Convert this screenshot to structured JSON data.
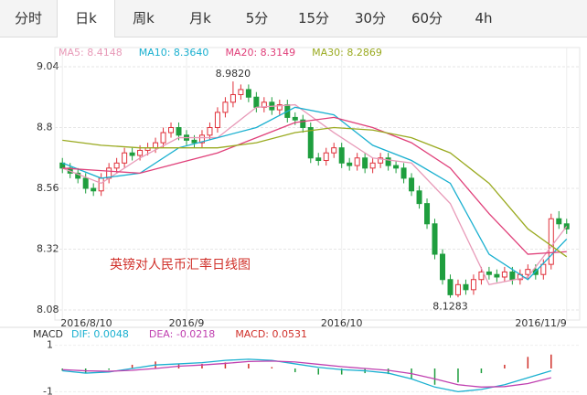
{
  "tabs": [
    "分时",
    "日k",
    "周k",
    "月k",
    "5分",
    "15分",
    "30分",
    "60分",
    "4h"
  ],
  "active_tab": 1,
  "chart_data": [
    {
      "type": "candlestick",
      "title": "英镑对人民币汇率日线图",
      "title_color": "#d0302a",
      "up_color": "#e0303a",
      "down_color": "#1f9e3e",
      "xlim": [
        -0.5,
        65.5
      ],
      "ylim": [
        8.08,
        9.04
      ],
      "yticks": [
        9.04,
        8.8,
        8.56,
        8.32,
        8.08
      ],
      "grid": true,
      "xticks": [
        {
          "value": 0,
          "label": "2016/8/10"
        },
        {
          "value": 16,
          "label": "2016/9"
        },
        {
          "value": 36,
          "label": "2016/10"
        },
        {
          "value": 65,
          "label": "2016/11/9"
        }
      ],
      "open": [
        8.66,
        8.64,
        8.62,
        8.6,
        8.56,
        8.55,
        8.6,
        8.64,
        8.66,
        8.7,
        8.69,
        8.71,
        8.72,
        8.74,
        8.78,
        8.8,
        8.77,
        8.75,
        8.74,
        8.77,
        8.8,
        8.86,
        8.9,
        8.93,
        8.95,
        8.92,
        8.88,
        8.9,
        8.87,
        8.89,
        8.84,
        8.83,
        8.8,
        8.68,
        8.67,
        8.7,
        8.72,
        8.66,
        8.65,
        8.68,
        8.64,
        8.66,
        8.68,
        8.65,
        8.64,
        8.6,
        8.55,
        8.5,
        8.42,
        8.3,
        8.2,
        8.14,
        8.18,
        8.16,
        8.2,
        8.23,
        8.22,
        8.21,
        8.23,
        8.2,
        8.22,
        8.24,
        8.22,
        8.26,
        8.44,
        8.42
      ],
      "high": [
        8.68,
        8.66,
        8.64,
        8.62,
        8.58,
        8.62,
        8.66,
        8.68,
        8.72,
        8.72,
        8.73,
        8.74,
        8.76,
        8.8,
        8.82,
        8.82,
        8.79,
        8.77,
        8.79,
        8.82,
        8.88,
        8.92,
        8.982,
        8.97,
        8.97,
        8.94,
        8.92,
        8.92,
        8.91,
        8.91,
        8.86,
        8.85,
        8.82,
        8.7,
        8.72,
        8.74,
        8.74,
        8.68,
        8.7,
        8.7,
        8.68,
        8.7,
        8.7,
        8.67,
        8.66,
        8.62,
        8.57,
        8.52,
        8.44,
        8.32,
        8.22,
        8.2,
        8.2,
        8.22,
        8.25,
        8.25,
        8.24,
        8.25,
        8.25,
        8.24,
        8.26,
        8.26,
        8.28,
        8.46,
        8.47,
        8.44
      ],
      "low": [
        8.62,
        8.6,
        8.58,
        8.54,
        8.53,
        8.53,
        8.58,
        8.62,
        8.64,
        8.67,
        8.67,
        8.69,
        8.7,
        8.72,
        8.76,
        8.75,
        8.73,
        8.72,
        8.72,
        8.75,
        8.78,
        8.84,
        8.88,
        8.91,
        8.9,
        8.86,
        8.86,
        8.85,
        8.85,
        8.82,
        8.81,
        8.78,
        8.66,
        8.65,
        8.65,
        8.68,
        8.64,
        8.63,
        8.63,
        8.62,
        8.62,
        8.64,
        8.63,
        8.62,
        8.58,
        8.53,
        8.48,
        8.4,
        8.28,
        8.18,
        8.1283,
        8.13,
        8.14,
        8.14,
        8.18,
        8.2,
        8.19,
        8.19,
        8.18,
        8.18,
        8.2,
        8.2,
        8.2,
        8.24,
        8.4,
        8.38
      ],
      "close": [
        8.64,
        8.62,
        8.6,
        8.56,
        8.55,
        8.6,
        8.64,
        8.66,
        8.7,
        8.69,
        8.71,
        8.72,
        8.74,
        8.78,
        8.8,
        8.77,
        8.75,
        8.74,
        8.77,
        8.8,
        8.86,
        8.9,
        8.93,
        8.95,
        8.92,
        8.88,
        8.9,
        8.87,
        8.89,
        8.84,
        8.83,
        8.8,
        8.68,
        8.67,
        8.7,
        8.72,
        8.66,
        8.65,
        8.68,
        8.64,
        8.66,
        8.68,
        8.65,
        8.64,
        8.6,
        8.55,
        8.5,
        8.42,
        8.3,
        8.2,
        8.14,
        8.18,
        8.16,
        8.2,
        8.23,
        8.22,
        8.21,
        8.23,
        8.2,
        8.22,
        8.24,
        8.22,
        8.26,
        8.44,
        8.42,
        8.4
      ],
      "series": [
        {
          "label": "MA5: 8.4148",
          "color": "#e89ab8",
          "x": [
            0,
            5,
            10,
            15,
            20,
            25,
            30,
            35,
            40,
            45,
            50,
            55,
            60,
            65
          ],
          "values": [
            8.64,
            8.58,
            8.68,
            8.76,
            8.76,
            8.88,
            8.89,
            8.78,
            8.68,
            8.66,
            8.5,
            8.18,
            8.21,
            8.41
          ]
        },
        {
          "label": "MA10: 8.3640",
          "color": "#1ab0d0",
          "x": [
            0,
            5,
            10,
            15,
            20,
            25,
            30,
            35,
            40,
            45,
            50,
            55,
            60,
            65
          ],
          "values": [
            8.66,
            8.6,
            8.62,
            8.72,
            8.76,
            8.8,
            8.88,
            8.85,
            8.73,
            8.67,
            8.58,
            8.3,
            8.2,
            8.36
          ]
        },
        {
          "label": "MA20: 8.3149",
          "color": "#e0407a",
          "x": [
            0,
            5,
            10,
            15,
            20,
            25,
            30,
            35,
            40,
            45,
            50,
            55,
            60,
            65
          ],
          "values": [
            8.64,
            8.63,
            8.62,
            8.66,
            8.7,
            8.76,
            8.82,
            8.84,
            8.8,
            8.74,
            8.64,
            8.46,
            8.3,
            8.31
          ]
        },
        {
          "label": "MA30: 8.2869",
          "color": "#9aaa20",
          "x": [
            0,
            5,
            10,
            15,
            20,
            25,
            30,
            35,
            40,
            45,
            50,
            55,
            60,
            65
          ],
          "values": [
            8.75,
            8.73,
            8.72,
            8.72,
            8.72,
            8.74,
            8.78,
            8.8,
            8.79,
            8.76,
            8.7,
            8.58,
            8.4,
            8.29
          ]
        }
      ],
      "annotations": [
        {
          "text": "8.9820",
          "x": 22,
          "y": 8.982,
          "side": "above"
        },
        {
          "text": "8.1283",
          "x": 50,
          "y": 8.1283,
          "side": "below"
        }
      ]
    },
    {
      "type": "macd",
      "title": "MACD",
      "xlim": [
        -0.5,
        65.5
      ],
      "ylim": [
        -1.3,
        1.3
      ],
      "yticks": [
        1,
        -1
      ],
      "x": [
        0,
        3,
        6,
        9,
        12,
        15,
        18,
        21,
        24,
        27,
        30,
        33,
        36,
        39,
        42,
        45,
        48,
        51,
        54,
        57,
        60,
        63
      ],
      "series": [
        {
          "label": "DIF: 0.0048",
          "color": "#1ab0d0",
          "values": [
            -0.1,
            -0.2,
            -0.15,
            0.0,
            0.15,
            0.2,
            0.25,
            0.35,
            0.4,
            0.35,
            0.2,
            0.05,
            -0.05,
            -0.1,
            -0.2,
            -0.45,
            -0.8,
            -1.0,
            -0.9,
            -0.7,
            -0.4,
            -0.1
          ]
        },
        {
          "label": "DEA: -0.0218",
          "color": "#c040b0",
          "values": [
            -0.05,
            -0.1,
            -0.12,
            -0.08,
            0.0,
            0.1,
            0.15,
            0.22,
            0.3,
            0.32,
            0.28,
            0.18,
            0.08,
            0.0,
            -0.08,
            -0.22,
            -0.45,
            -0.7,
            -0.8,
            -0.78,
            -0.65,
            -0.4
          ]
        }
      ],
      "bars": {
        "label": "MACD: 0.0531",
        "color": "#d0302a",
        "up_color": "#d0302a",
        "down_color": "#1f9e3e",
        "values": [
          -0.1,
          -0.2,
          -0.06,
          0.16,
          0.3,
          0.2,
          0.2,
          0.26,
          0.2,
          0.06,
          -0.16,
          -0.26,
          -0.26,
          -0.2,
          -0.24,
          -0.46,
          -0.7,
          -0.6,
          -0.2,
          0.16,
          0.5,
          0.6
        ]
      }
    }
  ]
}
